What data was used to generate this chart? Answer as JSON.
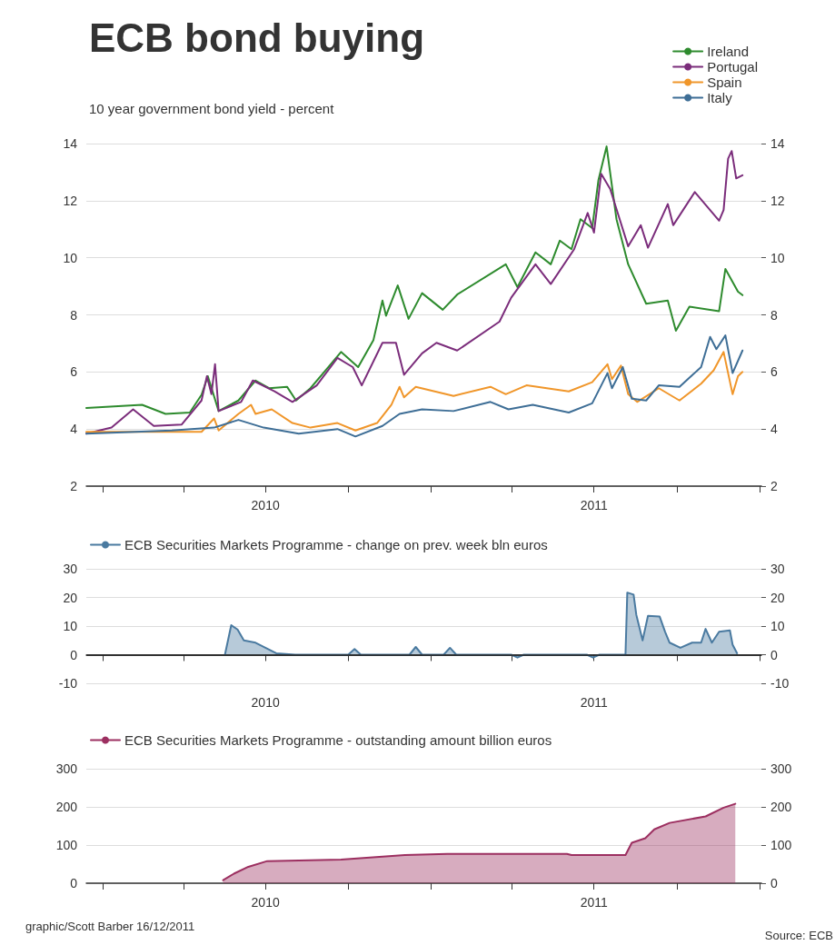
{
  "chart_data": [
    {
      "type": "line",
      "title": "ECB bond buying",
      "subtitle": "10 year government bond yield - percent",
      "legend": "top right",
      "grid": "y",
      "xlim": [
        "2009-12-14",
        "2012-01-03"
      ],
      "xticks": [
        {
          "value": "2010-01-01",
          "label": null
        },
        {
          "value": "2010-04-01",
          "label": null
        },
        {
          "value": "2010-07-01",
          "label": "2010"
        },
        {
          "value": "2010-10-01",
          "label": null
        },
        {
          "value": "2011-01-01",
          "label": null
        },
        {
          "value": "2011-04-01",
          "label": null
        },
        {
          "value": "2011-07-01",
          "label": "2011"
        },
        {
          "value": "2011-10-01",
          "label": null
        },
        {
          "value": "2012-01-01",
          "label": null
        }
      ],
      "ylim": [
        2,
        14
      ],
      "yticks": [
        2,
        4,
        6,
        8,
        10,
        12,
        14
      ],
      "y2lim": [
        2,
        14
      ],
      "y2ticks": [
        2,
        4,
        6,
        8,
        10,
        12,
        14
      ],
      "series": [
        {
          "name": "Ireland",
          "color": "#2e8b2e",
          "x": [
            "2009-12-14",
            "2010-02-14",
            "2010-03-12",
            "2010-04-08",
            "2010-04-21",
            "2010-04-28",
            "2010-05-10",
            "2010-06-01",
            "2010-06-20",
            "2010-07-05",
            "2010-07-25",
            "2010-08-04",
            "2010-08-20",
            "2010-09-06",
            "2010-09-23",
            "2010-10-12",
            "2010-10-29",
            "2010-11-08",
            "2010-11-12",
            "2010-11-25",
            "2010-12-07",
            "2010-12-22",
            "2011-01-14",
            "2011-01-30",
            "2011-03-25",
            "2011-04-07",
            "2011-04-27",
            "2011-05-14",
            "2011-05-24",
            "2011-06-06",
            "2011-06-16",
            "2011-06-29",
            "2011-07-06",
            "2011-07-15",
            "2011-07-26",
            "2011-08-08",
            "2011-08-28",
            "2011-09-21",
            "2011-09-30",
            "2011-10-15",
            "2011-11-17",
            "2011-11-24",
            "2011-12-08",
            "2011-12-13"
          ],
          "values": [
            4.74,
            4.85,
            4.53,
            4.58,
            5.2,
            5.85,
            4.63,
            5.0,
            5.7,
            5.43,
            5.48,
            5.0,
            5.43,
            6.06,
            6.7,
            6.17,
            7.12,
            8.5,
            7.97,
            9.03,
            7.86,
            8.76,
            8.18,
            8.71,
            9.77,
            8.97,
            10.19,
            9.77,
            10.6,
            10.3,
            11.35,
            11.04,
            12.73,
            13.9,
            11.35,
            9.77,
            8.39,
            8.5,
            7.44,
            8.29,
            8.13,
            9.61,
            8.81,
            8.69
          ]
        },
        {
          "name": "Portugal",
          "color": "#7b2d7b",
          "x": [
            "2009-12-14",
            "2010-01-11",
            "2010-02-04",
            "2010-02-27",
            "2010-03-30",
            "2010-04-21",
            "2010-04-27",
            "2010-05-02",
            "2010-05-06",
            "2010-05-10",
            "2010-06-04",
            "2010-06-17",
            "2010-07-11",
            "2010-07-31",
            "2010-08-27",
            "2010-09-19",
            "2010-10-06",
            "2010-10-16",
            "2010-11-08",
            "2010-11-23",
            "2010-12-02",
            "2010-12-22",
            "2011-01-07",
            "2011-01-30",
            "2011-03-18",
            "2011-03-31",
            "2011-04-27",
            "2011-05-14",
            "2011-06-09",
            "2011-06-24",
            "2011-07-01",
            "2011-07-09",
            "2011-07-19",
            "2011-08-08",
            "2011-08-22",
            "2011-08-30",
            "2011-09-21",
            "2011-09-27",
            "2011-10-21",
            "2011-11-17",
            "2011-11-22",
            "2011-11-27",
            "2011-12-01",
            "2011-12-06",
            "2011-12-13"
          ],
          "values": [
            3.84,
            4.05,
            4.69,
            4.11,
            4.16,
            5.0,
            5.85,
            5.22,
            6.27,
            4.63,
            4.95,
            5.7,
            5.32,
            4.95,
            5.53,
            6.49,
            6.17,
            5.53,
            7.02,
            7.02,
            5.9,
            6.65,
            7.02,
            6.75,
            7.76,
            8.6,
            9.77,
            9.08,
            10.3,
            11.57,
            10.88,
            12.94,
            12.41,
            10.4,
            11.14,
            10.35,
            11.88,
            11.14,
            12.3,
            11.3,
            11.67,
            13.47,
            13.74,
            12.78,
            12.89
          ]
        },
        {
          "name": "Spain",
          "color": "#f0962a",
          "x": [
            "2009-12-14",
            "2010-04-21",
            "2010-05-05",
            "2010-05-10",
            "2010-06-01",
            "2010-06-15",
            "2010-06-20",
            "2010-07-08",
            "2010-07-31",
            "2010-08-20",
            "2010-09-19",
            "2010-10-09",
            "2010-11-02",
            "2010-11-18",
            "2010-11-27",
            "2010-12-02",
            "2010-12-15",
            "2011-01-26",
            "2011-03-08",
            "2011-03-25",
            "2011-04-17",
            "2011-06-03",
            "2011-06-29",
            "2011-07-16",
            "2011-07-21",
            "2011-07-31",
            "2011-08-08",
            "2011-08-18",
            "2011-09-11",
            "2011-10-04",
            "2011-10-28",
            "2011-11-11",
            "2011-11-22",
            "2011-12-02",
            "2011-12-08",
            "2011-12-13"
          ],
          "values": [
            3.9,
            3.9,
            4.37,
            3.95,
            4.53,
            4.85,
            4.53,
            4.69,
            4.21,
            4.05,
            4.21,
            3.95,
            4.21,
            4.85,
            5.48,
            5.11,
            5.48,
            5.16,
            5.48,
            5.22,
            5.53,
            5.32,
            5.64,
            6.27,
            5.75,
            6.22,
            5.22,
            4.95,
            5.43,
            5.0,
            5.59,
            6.06,
            6.7,
            5.22,
            5.85,
            6.0
          ]
        },
        {
          "name": "Italy",
          "color": "#3e6e96",
          "x": [
            "2009-12-14",
            "2010-03-19",
            "2010-05-05",
            "2010-06-01",
            "2010-06-29",
            "2010-08-07",
            "2010-09-19",
            "2010-10-09",
            "2010-11-08",
            "2010-11-27",
            "2010-12-22",
            "2011-01-26",
            "2011-03-08",
            "2011-03-28",
            "2011-04-24",
            "2011-06-03",
            "2011-06-29",
            "2011-07-16",
            "2011-07-21",
            "2011-08-02",
            "2011-08-12",
            "2011-08-28",
            "2011-09-11",
            "2011-10-04",
            "2011-10-28",
            "2011-11-07",
            "2011-11-14",
            "2011-11-24",
            "2011-12-02",
            "2011-12-13"
          ],
          "values": [
            3.84,
            3.95,
            4.05,
            4.32,
            4.05,
            3.84,
            4.0,
            3.74,
            4.11,
            4.53,
            4.69,
            4.63,
            4.95,
            4.69,
            4.85,
            4.58,
            4.9,
            5.96,
            5.43,
            6.17,
            5.06,
            5.0,
            5.53,
            5.48,
            6.17,
            7.23,
            6.8,
            7.28,
            5.96,
            6.75
          ]
        }
      ]
    },
    {
      "type": "area",
      "legend": "top left",
      "grid": "y",
      "xlim": [
        "2009-12-14",
        "2012-01-03"
      ],
      "xticks": [
        {
          "value": "2010-01-01",
          "label": null
        },
        {
          "value": "2010-04-01",
          "label": null
        },
        {
          "value": "2010-07-01",
          "label": "2010"
        },
        {
          "value": "2010-10-01",
          "label": null
        },
        {
          "value": "2011-01-01",
          "label": null
        },
        {
          "value": "2011-04-01",
          "label": null
        },
        {
          "value": "2011-07-01",
          "label": "2011"
        },
        {
          "value": "2011-10-01",
          "label": null
        },
        {
          "value": "2012-01-01",
          "label": null
        }
      ],
      "ylim": [
        -10,
        30
      ],
      "yticks": [
        -10,
        0,
        10,
        20,
        30
      ],
      "y2lim": [
        -10,
        30
      ],
      "y2ticks": [
        -10,
        0,
        10,
        20,
        30
      ],
      "ref_lines": [
        {
          "axis": "y",
          "value": 0,
          "color": "#222222"
        }
      ],
      "series": [
        {
          "name": "ECB Securities Markets Programme - change on prev. week bln euros",
          "color": "#4a7aa0",
          "x": [
            "2010-05-17",
            "2010-05-24",
            "2010-05-31",
            "2010-06-07",
            "2010-06-20",
            "2010-07-13",
            "2010-08-03",
            "2010-10-01",
            "2010-10-08",
            "2010-10-15",
            "2010-12-08",
            "2010-12-15",
            "2010-12-22",
            "2011-01-15",
            "2011-01-22",
            "2011-01-29",
            "2011-03-31",
            "2011-04-07",
            "2011-04-14",
            "2011-06-23",
            "2011-06-30",
            "2011-07-07",
            "2011-08-05",
            "2011-08-07",
            "2011-08-14",
            "2011-08-17",
            "2011-08-24",
            "2011-08-30",
            "2011-09-12",
            "2011-09-18",
            "2011-09-23",
            "2011-10-05",
            "2011-10-18",
            "2011-10-28",
            "2011-11-02",
            "2011-11-09",
            "2011-11-17",
            "2011-11-29",
            "2011-12-02",
            "2011-12-07"
          ],
          "values": [
            0,
            10.3,
            8.8,
            5.0,
            4.2,
            0.5,
            0,
            0,
            2,
            0,
            0,
            2.7,
            0,
            0,
            2.4,
            0,
            0,
            -1,
            0,
            0,
            -1,
            0,
            0,
            21.7,
            21,
            14,
            5,
            13.6,
            13.3,
            8,
            4.2,
            2.4,
            4.2,
            4.2,
            9,
            4.2,
            8,
            8.5,
            3.5,
            0.5
          ]
        }
      ]
    },
    {
      "type": "area",
      "legend": "top left",
      "grid": "y",
      "xlim": [
        "2009-12-14",
        "2012-01-03"
      ],
      "xticks": [
        {
          "value": "2010-01-01",
          "label": null
        },
        {
          "value": "2010-04-01",
          "label": null
        },
        {
          "value": "2010-07-01",
          "label": "2010"
        },
        {
          "value": "2010-10-01",
          "label": null
        },
        {
          "value": "2011-01-01",
          "label": null
        },
        {
          "value": "2011-04-01",
          "label": null
        },
        {
          "value": "2011-07-01",
          "label": "2011"
        },
        {
          "value": "2011-10-01",
          "label": null
        },
        {
          "value": "2012-01-01",
          "label": null
        }
      ],
      "ylim": [
        0,
        300
      ],
      "yticks": [
        0,
        100,
        200,
        300
      ],
      "y2lim": [
        0,
        300
      ],
      "y2ticks": [
        0,
        100,
        200,
        300
      ],
      "annotations": [
        "graphic/Scott Barber 16/12/2011",
        "Source: ECB"
      ],
      "series": [
        {
          "name": "ECB Securities Markets Programme - outstanding amount billion euros",
          "color": "#9c2f60",
          "x": [
            "2010-05-15",
            "2010-05-27",
            "2010-06-12",
            "2010-07-03",
            "2010-09-23",
            "2010-12-03",
            "2011-01-19",
            "2011-06-01",
            "2011-06-06",
            "2011-08-05",
            "2011-08-12",
            "2011-08-27",
            "2011-09-06",
            "2011-09-23",
            "2011-11-02",
            "2011-11-22",
            "2011-12-05"
          ],
          "values": [
            8,
            25,
            43,
            58,
            62,
            74,
            77,
            77,
            74,
            74,
            106,
            118,
            141,
            158,
            175,
            198,
            208
          ]
        }
      ]
    }
  ]
}
